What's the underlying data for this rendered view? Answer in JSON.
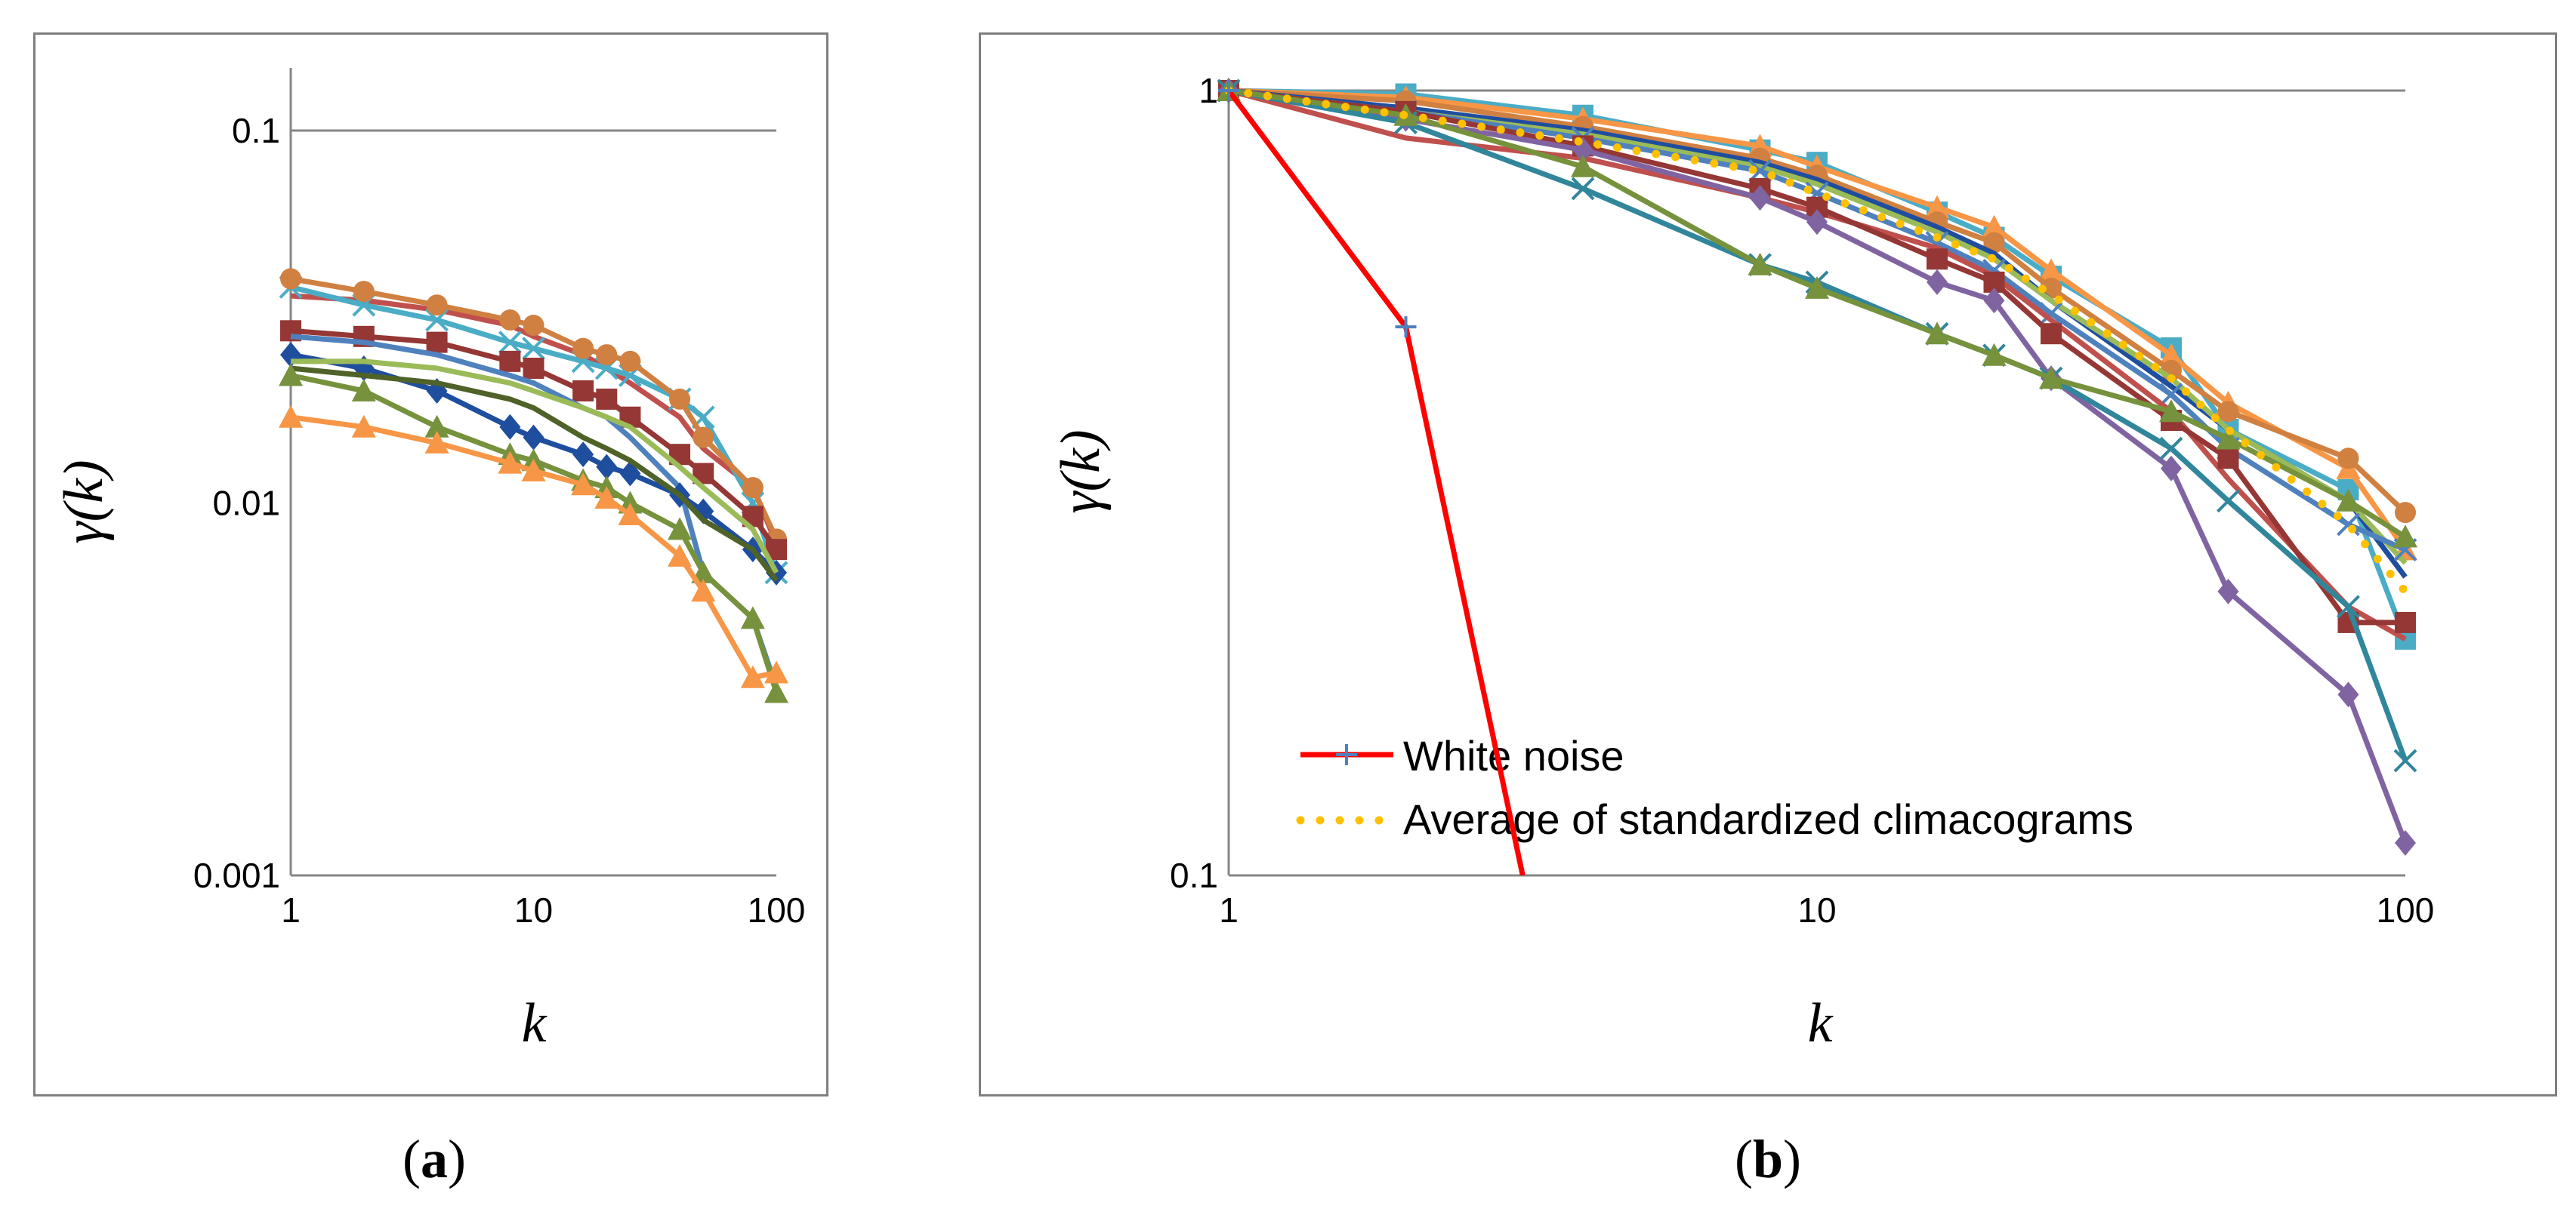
{
  "captions": {
    "a_open": "(",
    "a_letter": "a",
    "a_close": ")",
    "b_open": "(",
    "b_letter": "b",
    "b_close": ")"
  },
  "legend": {
    "white_noise": "White noise",
    "average": "Average of standardized climacograms"
  },
  "chart_data": [
    {
      "panel": "a",
      "type": "line",
      "xscale": "log",
      "yscale": "log",
      "xlim": [
        1,
        100
      ],
      "ylim": [
        0.001,
        0.15
      ],
      "xticks": [
        "1",
        "10",
        "100"
      ],
      "yticks": [
        "0.001",
        "0.01",
        "0.1"
      ],
      "xlabel": "k",
      "ylabel": "γ(k)",
      "x": [
        1,
        2,
        4,
        8,
        10,
        16,
        20,
        25,
        40,
        50,
        80,
        100
      ],
      "series": [
        {
          "name": "s1",
          "color": "#C0504D",
          "marker": "none",
          "values": [
            0.036,
            0.035,
            0.033,
            0.03,
            0.028,
            0.025,
            0.023,
            0.021,
            0.017,
            0.014,
            0.011,
            0.0078
          ]
        },
        {
          "name": "s2",
          "color": "#4BACC6",
          "marker": "x",
          "values": [
            0.038,
            0.034,
            0.031,
            0.027,
            0.026,
            0.024,
            0.023,
            0.022,
            0.019,
            0.017,
            0.01,
            0.0065
          ]
        },
        {
          "name": "s3",
          "color": "#D08040",
          "marker": "circle",
          "values": [
            0.04,
            0.037,
            0.034,
            0.031,
            0.03,
            0.026,
            0.025,
            0.024,
            0.019,
            0.015,
            0.011,
            0.008
          ]
        },
        {
          "name": "s4",
          "color": "#953735",
          "marker": "square",
          "values": [
            0.029,
            0.028,
            0.027,
            0.024,
            0.023,
            0.02,
            0.019,
            0.017,
            0.0135,
            0.012,
            0.0092,
            0.0075
          ]
        },
        {
          "name": "s5",
          "color": "#4F81BD",
          "marker": "none",
          "values": [
            0.028,
            0.027,
            0.025,
            0.022,
            0.021,
            0.018,
            0.017,
            0.015,
            0.011,
            0.0065,
            0.0049,
            0.0032
          ]
        },
        {
          "name": "s6",
          "color": "#1F4E9E",
          "marker": "diamond",
          "values": [
            0.025,
            0.023,
            0.02,
            0.016,
            0.015,
            0.0135,
            0.0125,
            0.012,
            0.0105,
            0.0095,
            0.0075,
            0.0065
          ]
        },
        {
          "name": "s7",
          "color": "#9BBB59",
          "marker": "none",
          "values": [
            0.024,
            0.024,
            0.023,
            0.021,
            0.02,
            0.018,
            0.017,
            0.016,
            0.0125,
            0.011,
            0.0085,
            0.0065
          ]
        },
        {
          "name": "s8",
          "color": "#4F6228",
          "marker": "none",
          "values": [
            0.023,
            0.022,
            0.021,
            0.019,
            0.018,
            0.015,
            0.014,
            0.013,
            0.0105,
            0.009,
            0.0075,
            0.0062
          ]
        },
        {
          "name": "s9",
          "color": "#76923C",
          "marker": "triangle",
          "values": [
            0.022,
            0.02,
            0.016,
            0.0135,
            0.013,
            0.0115,
            0.011,
            0.01,
            0.0085,
            0.0065,
            0.0049,
            0.0031
          ]
        },
        {
          "name": "s10",
          "color": "#F79646",
          "marker": "triangle",
          "values": [
            0.017,
            0.016,
            0.0145,
            0.0128,
            0.0122,
            0.0112,
            0.0103,
            0.0093,
            0.0072,
            0.0058,
            0.0034,
            0.0035
          ]
        }
      ]
    },
    {
      "panel": "b",
      "type": "line",
      "xscale": "log",
      "yscale": "log",
      "xlim": [
        1,
        100
      ],
      "ylim": [
        0.1,
        1
      ],
      "xticks": [
        "1",
        "10",
        "100"
      ],
      "yticks": [
        "0.1",
        "1"
      ],
      "xlabel": "k",
      "ylabel": "γ(k)",
      "x": [
        1,
        2,
        4,
        8,
        10,
        16,
        20,
        25,
        40,
        50,
        80,
        100
      ],
      "white_noise": {
        "x": [
          1,
          2,
          3.16
        ],
        "values": [
          1,
          0.5,
          0.1
        ],
        "color": "#FF0000",
        "marker": "plus",
        "label_key": "legend.white_noise"
      },
      "average": {
        "color": "#FFC000",
        "marker": "dotted",
        "label_key": "legend.average",
        "values": [
          1,
          0.93,
          0.86,
          0.79,
          0.74,
          0.65,
          0.61,
          0.55,
          0.43,
          0.37,
          0.28,
          0.23
        ]
      },
      "series": [
        {
          "name": "s1",
          "color": "#4BACC6",
          "marker": "square",
          "values": [
            1,
            0.99,
            0.93,
            0.84,
            0.81,
            0.7,
            0.65,
            0.58,
            0.47,
            0.37,
            0.31,
            0.2
          ]
        },
        {
          "name": "s2",
          "color": "#F79646",
          "marker": "triangle",
          "values": [
            1,
            0.98,
            0.92,
            0.85,
            0.8,
            0.71,
            0.67,
            0.59,
            0.46,
            0.4,
            0.33,
            0.26
          ]
        },
        {
          "name": "s3",
          "color": "#D08040",
          "marker": "circle",
          "values": [
            1,
            0.97,
            0.9,
            0.82,
            0.78,
            0.68,
            0.64,
            0.56,
            0.44,
            0.39,
            0.34,
            0.29
          ]
        },
        {
          "name": "s4",
          "color": "#1F4E9E",
          "marker": "none",
          "values": [
            1,
            0.95,
            0.89,
            0.81,
            0.77,
            0.67,
            0.62,
            0.54,
            0.42,
            0.37,
            0.3,
            0.24
          ]
        },
        {
          "name": "s5",
          "color": "#9BBB59",
          "marker": "none",
          "values": [
            1,
            0.94,
            0.88,
            0.8,
            0.76,
            0.66,
            0.61,
            0.54,
            0.43,
            0.37,
            0.3,
            0.25
          ]
        },
        {
          "name": "s6",
          "color": "#4F81BD",
          "marker": "x",
          "values": [
            1,
            0.94,
            0.87,
            0.79,
            0.74,
            0.64,
            0.59,
            0.52,
            0.41,
            0.35,
            0.28,
            0.26
          ]
        },
        {
          "name": "s7",
          "color": "#C0504D",
          "marker": "none",
          "values": [
            1,
            0.87,
            0.82,
            0.73,
            0.7,
            0.63,
            0.58,
            0.51,
            0.39,
            0.32,
            0.22,
            0.2
          ]
        },
        {
          "name": "s8",
          "color": "#953735",
          "marker": "square",
          "values": [
            1,
            0.94,
            0.85,
            0.75,
            0.71,
            0.61,
            0.57,
            0.49,
            0.38,
            0.34,
            0.21,
            0.21
          ]
        },
        {
          "name": "s9",
          "color": "#8064A2",
          "marker": "diamond",
          "values": [
            1,
            0.92,
            0.84,
            0.73,
            0.68,
            0.57,
            0.54,
            0.43,
            0.33,
            0.23,
            0.17,
            0.11
          ]
        },
        {
          "name": "s10",
          "color": "#31869B",
          "marker": "x",
          "values": [
            1,
            0.91,
            0.75,
            0.6,
            0.57,
            0.49,
            0.46,
            0.43,
            0.35,
            0.3,
            0.22,
            0.14
          ]
        },
        {
          "name": "s11",
          "color": "#76923C",
          "marker": "triangle",
          "values": [
            1,
            0.93,
            0.8,
            0.6,
            0.56,
            0.49,
            0.46,
            0.43,
            0.39,
            0.36,
            0.3,
            0.27
          ]
        }
      ]
    }
  ]
}
